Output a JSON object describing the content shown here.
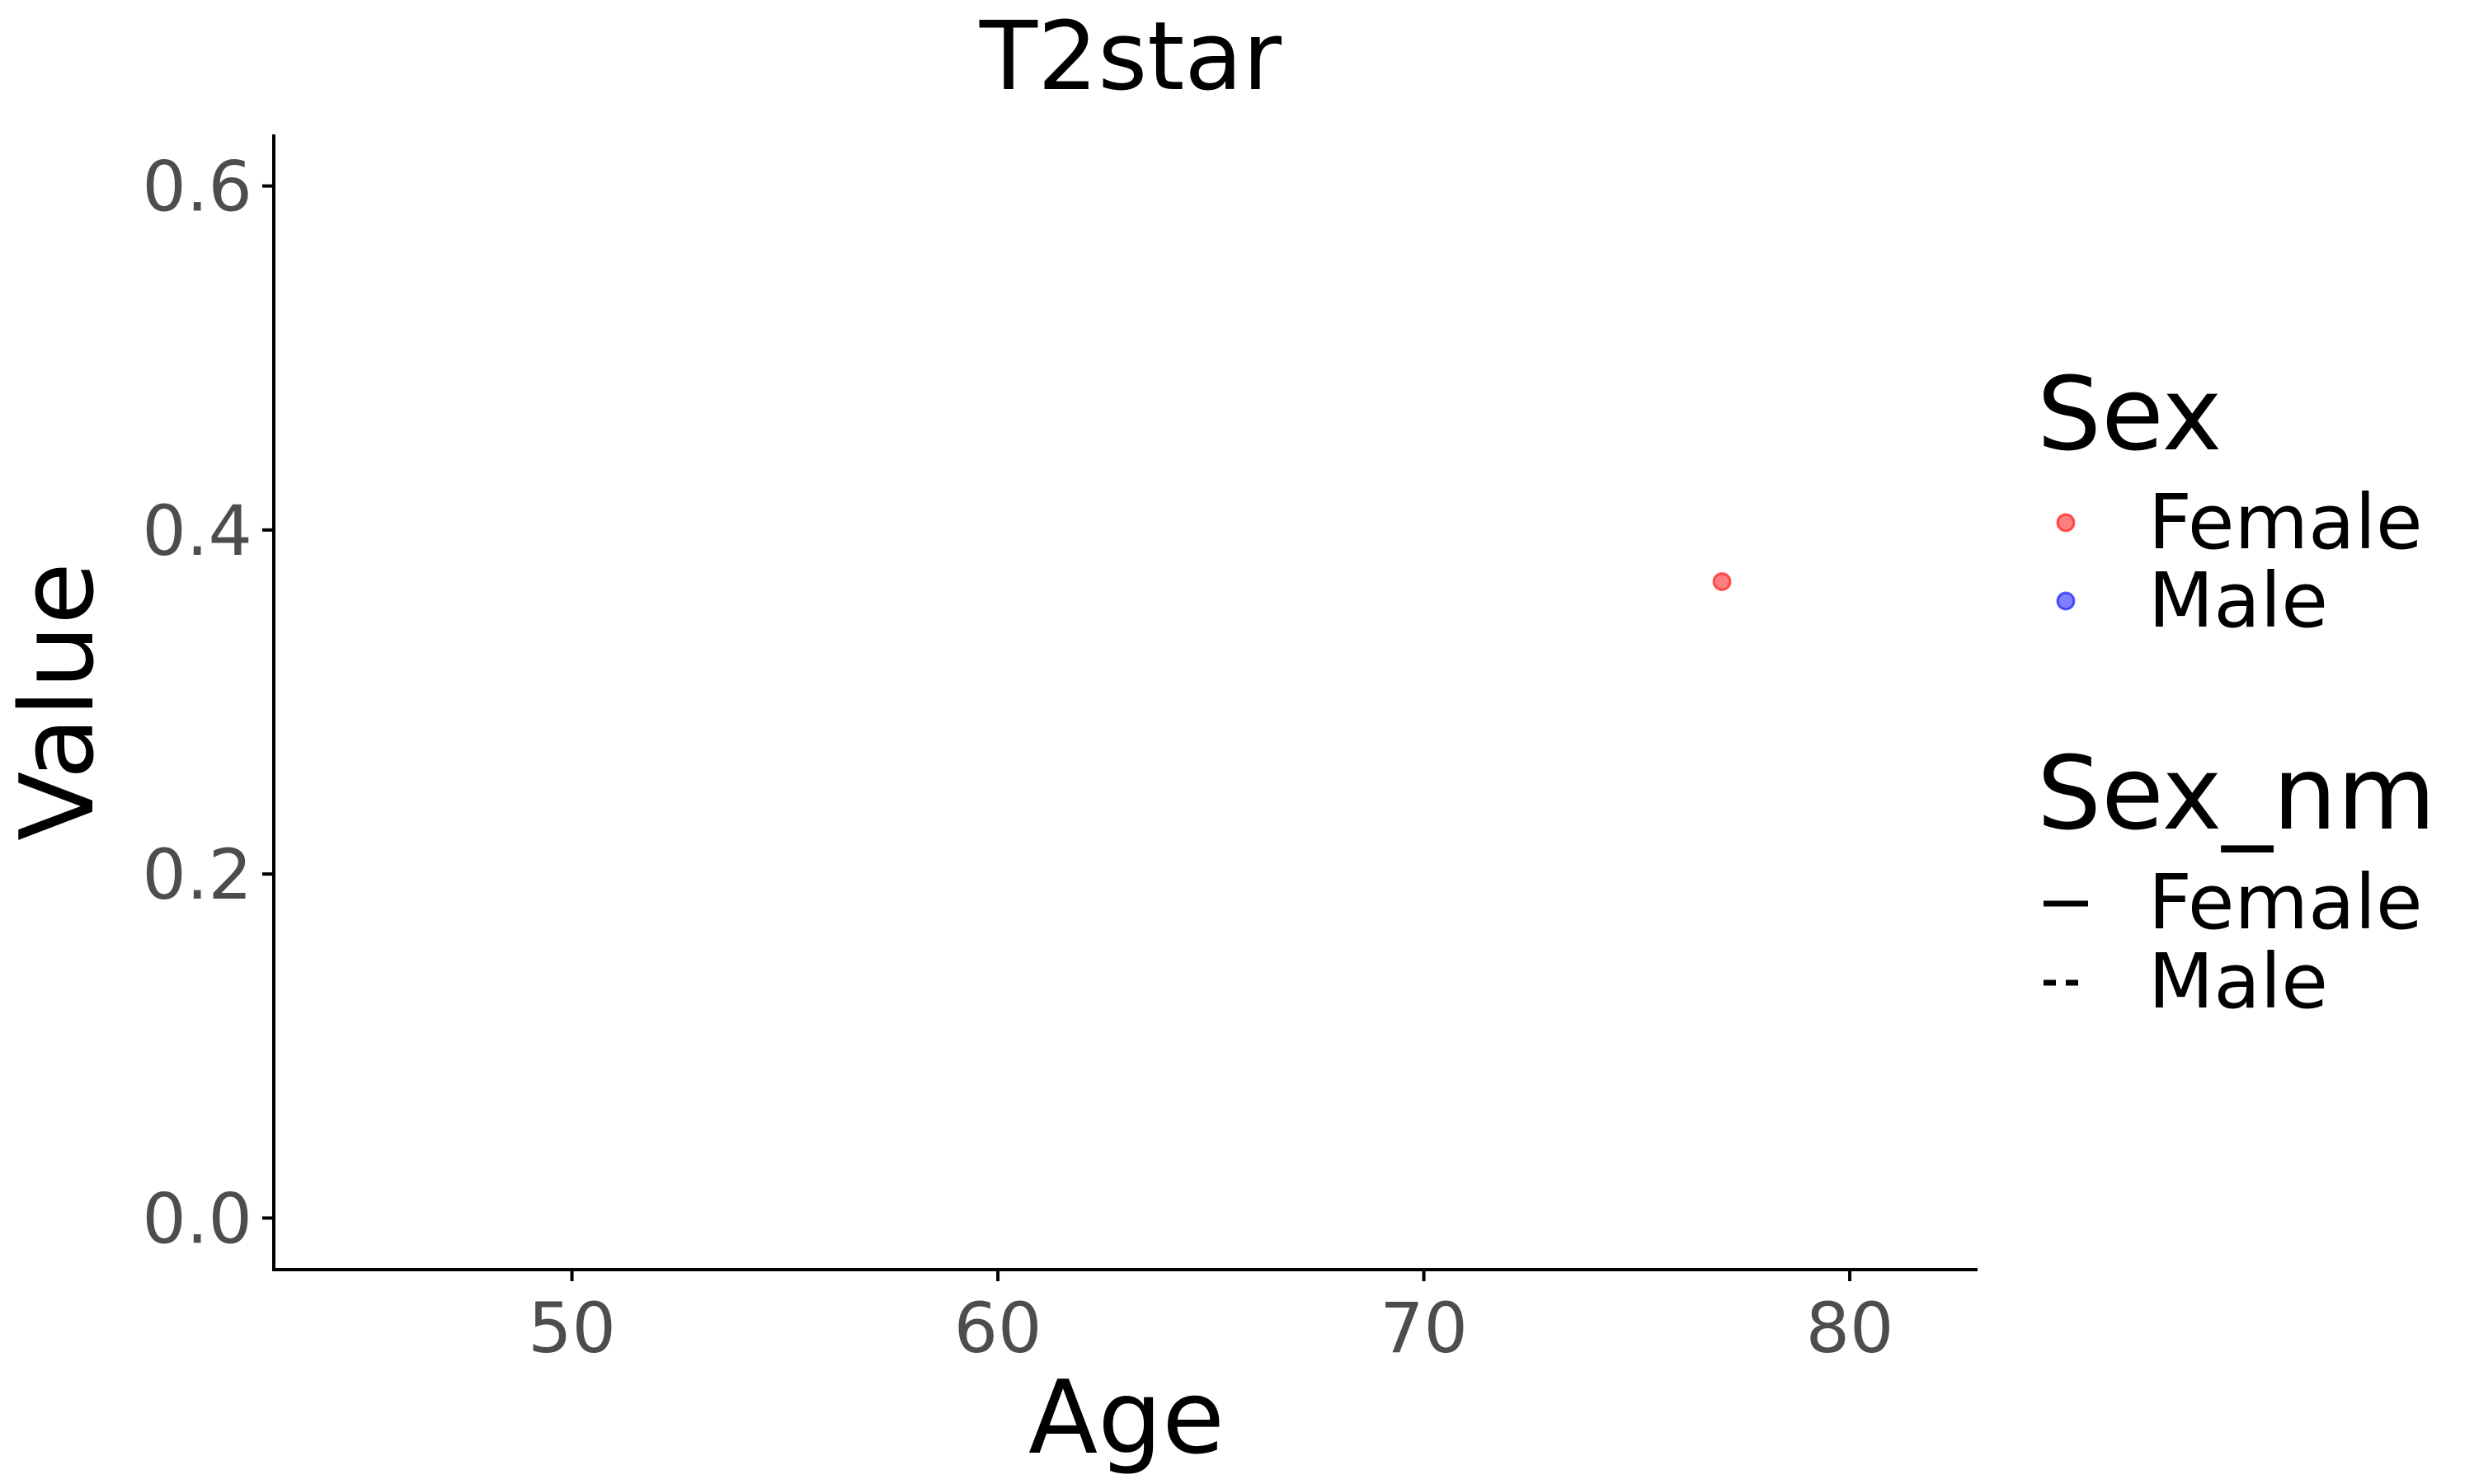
{
  "chart_data": {
    "type": "scatter",
    "title": "T2star",
    "xlabel": "Age",
    "ylabel": "Value",
    "xlim": [
      43,
      83
    ],
    "ylim": [
      -0.03,
      0.63
    ],
    "x_ticks": [
      50,
      60,
      70,
      80
    ],
    "x_tick_labels": [
      "50",
      "60",
      "70",
      "80"
    ],
    "y_ticks": [
      0.0,
      0.2,
      0.4,
      0.6
    ],
    "y_tick_labels": [
      "0.0",
      "0.2",
      "0.4",
      "0.6"
    ],
    "grid": false,
    "legend_position": "right",
    "series": [
      {
        "name": "Female",
        "color": "#f8766d",
        "fill": "#ff0000",
        "points": [
          {
            "x": 77,
            "y": 0.37
          }
        ]
      },
      {
        "name": "Male",
        "color": "#0000ff",
        "fill": "#0000ff",
        "points": []
      }
    ],
    "legends": [
      {
        "title": "Sex",
        "kind": "point",
        "items": [
          {
            "label": "Female",
            "color": "#ff0000"
          },
          {
            "label": "Male",
            "color": "#0000ff"
          }
        ]
      },
      {
        "title": "Sex_nm",
        "kind": "line",
        "items": [
          {
            "label": "Female",
            "linetype": "solid"
          },
          {
            "label": "Male",
            "linetype": "dashed"
          }
        ]
      }
    ]
  }
}
